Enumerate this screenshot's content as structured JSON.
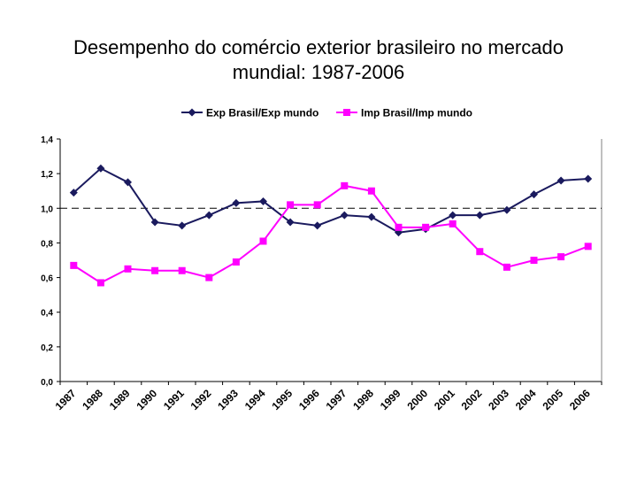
{
  "chart_data": {
    "type": "line",
    "title_line1": "Desempenho do comércio exterior brasileiro no mercado",
    "title_line2": "mundial: 1987-2006",
    "categories": [
      "1987",
      "1988",
      "1989",
      "1990",
      "1991",
      "1992",
      "1993",
      "1994",
      "1995",
      "1996",
      "1997",
      "1998",
      "1999",
      "2000",
      "2001",
      "2002",
      "2003",
      "2004",
      "2005",
      "2006"
    ],
    "y_ticks": [
      "0,0",
      "0,2",
      "0,4",
      "0,6",
      "0,8",
      "1,0",
      "1,2",
      "1,4"
    ],
    "ylim": [
      0,
      1.4
    ],
    "reference_line": 1.0,
    "series": [
      {
        "name": "Exp Brasil/Exp mundo",
        "color": "#1a1a5e",
        "marker": "diamond",
        "values": [
          1.09,
          1.23,
          1.15,
          0.92,
          0.9,
          0.96,
          1.03,
          1.04,
          0.92,
          0.9,
          0.96,
          0.95,
          0.86,
          0.88,
          0.96,
          0.96,
          0.99,
          1.08,
          1.16,
          1.17
        ]
      },
      {
        "name": "Imp Brasil/Imp mundo",
        "color": "#ff00ff",
        "marker": "square",
        "values": [
          0.67,
          0.57,
          0.65,
          0.64,
          0.64,
          0.6,
          0.69,
          0.81,
          1.02,
          1.02,
          1.13,
          1.1,
          0.89,
          0.89,
          0.91,
          0.75,
          0.66,
          0.7,
          0.72,
          0.78
        ]
      }
    ]
  }
}
